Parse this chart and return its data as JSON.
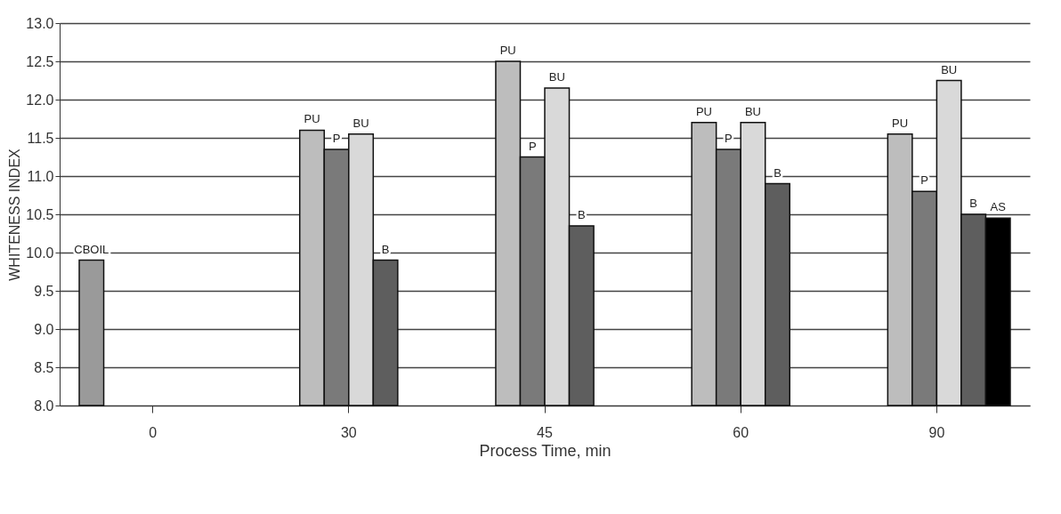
{
  "chart_data": {
    "type": "bar",
    "xlabel": "Process Time, min",
    "ylabel": "WHITENESS INDEX",
    "categories": [
      "0",
      "30",
      "45",
      "60",
      "90"
    ],
    "series": [
      {
        "name": "CBOIL",
        "color": "#9a9a9a",
        "values": [
          9.9,
          null,
          null,
          null,
          null
        ]
      },
      {
        "name": "PU",
        "color": "#bdbdbd",
        "values": [
          null,
          11.6,
          12.5,
          11.7,
          11.55
        ]
      },
      {
        "name": "P",
        "color": "#7a7a7a",
        "values": [
          null,
          11.35,
          11.25,
          11.35,
          10.8
        ]
      },
      {
        "name": "BU",
        "color": "#d9d9d9",
        "values": [
          null,
          11.55,
          12.15,
          11.7,
          12.25
        ]
      },
      {
        "name": "B",
        "color": "#5e5e5e",
        "values": [
          null,
          9.9,
          10.35,
          10.9,
          10.5
        ]
      },
      {
        "name": "AS",
        "color": "#000000",
        "values": [
          null,
          null,
          null,
          null,
          10.45
        ]
      }
    ],
    "ylim": [
      8,
      13
    ],
    "yticks": [
      {
        "value": 8,
        "label": "8.0"
      },
      {
        "value": 8.5,
        "label": "8.5"
      },
      {
        "value": 9,
        "label": "9.0"
      },
      {
        "value": 9.5,
        "label": "9.5"
      },
      {
        "value": 10,
        "label": "10.0"
      },
      {
        "value": 10.5,
        "label": "10.5"
      },
      {
        "value": 11,
        "label": "11.0"
      },
      {
        "value": 11.5,
        "label": "11.5"
      },
      {
        "value": 12,
        "label": "12.0"
      },
      {
        "value": 12.5,
        "label": "12.5"
      },
      {
        "value": 13,
        "label": "13.0"
      }
    ],
    "grid": "y",
    "legend": false
  }
}
